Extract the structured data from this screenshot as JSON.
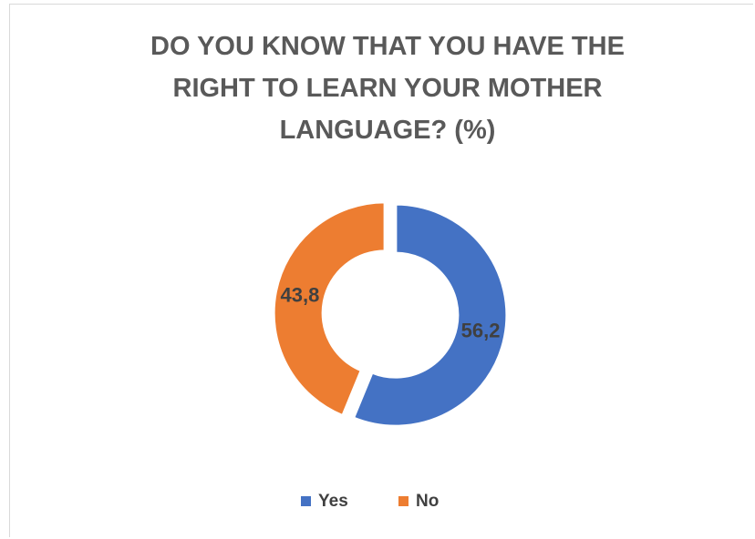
{
  "chart_data": {
    "type": "donut",
    "title": "DO YOU KNOW THAT YOU HAVE THE RIGHT TO LEARN YOUR MOTHER LANGUAGE? (%)",
    "categories": [
      "Yes",
      "No"
    ],
    "values": [
      56.2,
      43.8
    ],
    "value_labels": [
      "56,2",
      "43,8"
    ],
    "colors": [
      "#4472c4",
      "#ed7d31"
    ],
    "legend": "bottom"
  }
}
